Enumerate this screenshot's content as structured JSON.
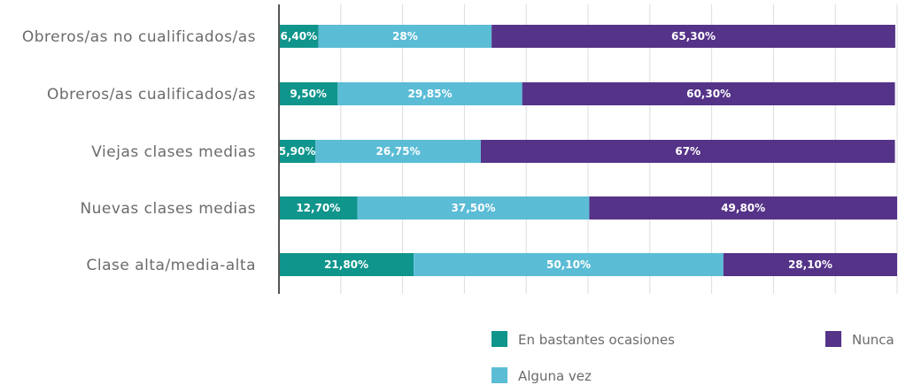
{
  "chart_data": {
    "type": "bar",
    "orientation": "horizontal",
    "stacked": true,
    "categories": [
      "Obreros/as no cualificados/as",
      "Obreros/as cualificados/as",
      "Viejas clases medias",
      "Nuevas clases medias",
      "Clase alta/media-alta"
    ],
    "series": [
      {
        "name": "En bastantes ocasiones",
        "color": "#0f958c",
        "values": [
          6.4,
          9.5,
          5.9,
          12.7,
          21.8
        ],
        "labels": [
          "6,40%",
          "9,50%",
          "5,90%",
          "12,70%",
          "21,80%"
        ]
      },
      {
        "name": "Alguna vez",
        "color": "#5bbcd6",
        "values": [
          28,
          29.85,
          26.75,
          37.5,
          50.1
        ],
        "labels": [
          "28%",
          "29,85%",
          "26,75%",
          "37,50%",
          "50,10%"
        ]
      },
      {
        "name": "Nunca",
        "color": "#553388",
        "values": [
          65.3,
          60.3,
          67,
          49.8,
          28.1
        ],
        "labels": [
          "65,30%",
          "60,30%",
          "67%",
          "49,80%",
          "28,10%"
        ]
      }
    ],
    "xlim": [
      0,
      100
    ],
    "grid": true,
    "legend_position": "bottom"
  }
}
